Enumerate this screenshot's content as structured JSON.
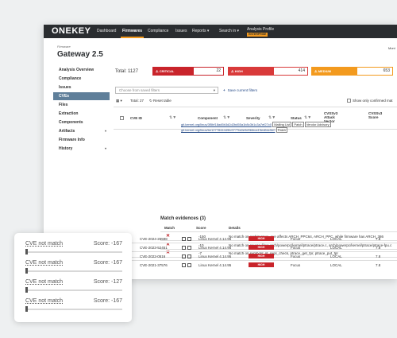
{
  "topbar": {
    "logo": "ONEKEY",
    "nav": [
      "Dashboard",
      "Firmwares",
      "Compliance",
      "Issues",
      "Reports",
      "Search in"
    ],
    "active_nav": "Firmwares",
    "profile_label": "Analysis Profile",
    "profile_badge": "ENTERPRISE"
  },
  "page": {
    "breadcrumb": "Firmware",
    "title": "Gateway 2.5",
    "monitor_label": "Moni"
  },
  "sidebar": {
    "items": [
      {
        "label": "Analysis Overview"
      },
      {
        "label": "Compliance"
      },
      {
        "label": "Issues"
      },
      {
        "label": "CVEs",
        "active": true
      },
      {
        "label": "Files"
      },
      {
        "label": "Extraction"
      },
      {
        "label": "Components"
      },
      {
        "label": "Artifacts",
        "expandable": true
      },
      {
        "label": "Firmware Info"
      },
      {
        "label": "History",
        "expandable": true
      }
    ]
  },
  "summary": {
    "total_label": "Total: 1127",
    "severities": [
      {
        "label": "CRITICAL",
        "count": "22",
        "color": "#c9242b"
      },
      {
        "label": "HIGH",
        "count": "414",
        "color": "#d93a3a"
      },
      {
        "label": "MEDIUM",
        "count": "653",
        "color": "#f39a1e"
      }
    ]
  },
  "filters": {
    "placeholder": "Choose from saved filters",
    "save_label": "Save current filters"
  },
  "table_controls": {
    "total": "Total: 27",
    "reset": "Reset table",
    "only_confirmed": "Show only confirmed mat"
  },
  "table": {
    "headers": [
      "CVE ID",
      "Component",
      "Severity",
      "Status",
      "CVSSv3 Attack Vector",
      "CVSSv3 Score"
    ],
    "links": [
      {
        "url": "git.kernel.org/linus/3f5bf18ad5b3d2d2bd55a1b8c3b1c3a7ef27c0",
        "tags": [
          "Mailing List",
          "Patch",
          "Vendor Advisory"
        ]
      },
      {
        "url": "git.kernel.org/linus/be1277844449fc9777fa0e9d9bfeca15ed6dc9e0",
        "tags": [
          "Patch"
        ]
      }
    ]
  },
  "match_evidences": {
    "title": "Match evidences (3)",
    "headers": [
      "Match",
      "Score",
      "Details"
    ],
    "rows": [
      {
        "score": "-150",
        "details": "No match on architecture, cve affects ARCH_PPC64, ARCH_PPC, while firmware has ARCH_386"
      },
      {
        "score": "-10",
        "details": "No match on source files: arch/powerpc/kernel/ptrace/ptrace.c, arch/powerpc/kernel/ptrace/ptrace-fpu.c"
      },
      {
        "score": "-7",
        "details": "No match on symbols: pt_regs_check, ptrace_get_fpr, ptrace_put_fpr"
      }
    ]
  },
  "cve_rows": [
    {
      "id": "CVE-2024-26598",
      "component": "Linux Kernel 4.14.95",
      "severity": "HIGH",
      "status": "Focus",
      "vector": "LOCAL",
      "score": "7.8"
    },
    {
      "id": "CVE-2023-52451",
      "component": "Linux Kernel 4.14.95",
      "severity": "HIGH",
      "status": "Focus",
      "vector": "LOCAL",
      "score": "7.8"
    },
    {
      "id": "CVE-2022-0516",
      "component": "Linux Kernel 4.14.95",
      "severity": "HIGH",
      "status": "Focus",
      "vector": "LOCAL",
      "score": "7.8"
    },
    {
      "id": "CVE-2021-37576",
      "component": "Linux Kernel 4.14.95",
      "severity": "HIGH",
      "status": "Focus",
      "vector": "LOCAL",
      "score": "7.8"
    }
  ],
  "card": {
    "rows": [
      {
        "name": "CVE not match",
        "score": "Score: -167",
        "level": 0
      },
      {
        "name": "CVE not match",
        "score": "Score: -167",
        "level": 0
      },
      {
        "name": "CVE not match",
        "score": "Score: -127",
        "level": 0
      },
      {
        "name": "CVE not match",
        "score": "Score: -167",
        "level": 0
      }
    ]
  }
}
